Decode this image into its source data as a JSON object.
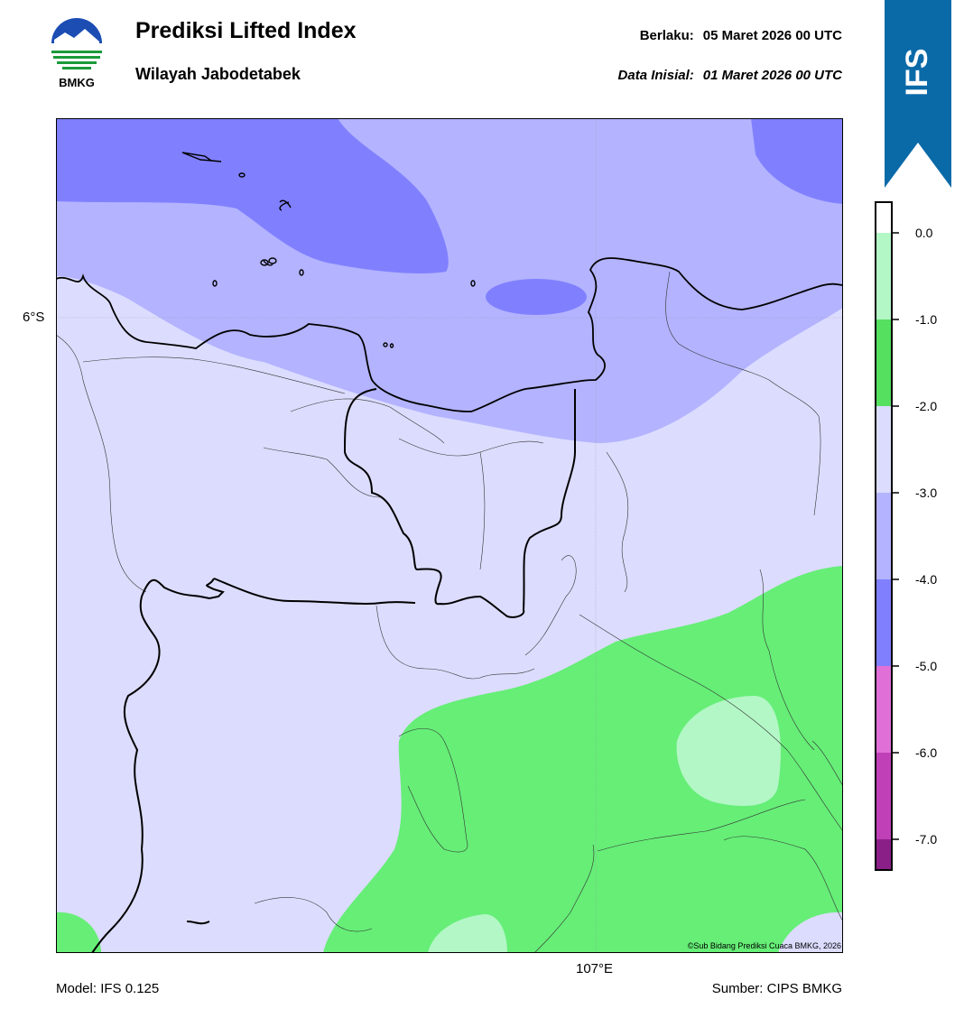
{
  "header": {
    "title": "Prediksi Lifted Index",
    "subtitle": "Wilayah Jabodetabek",
    "valid_label": "Berlaku:",
    "valid_value": "05 Maret 2026 00 UTC",
    "init_label": "Data Inisial:",
    "init_value": "01 Maret 2026 00 UTC"
  },
  "logo": {
    "text": "BMKG",
    "icon": "bmkg-logo"
  },
  "badge": {
    "text": "IFS",
    "color": "#0a6aa8"
  },
  "map": {
    "lat_label": "6°S",
    "lon_label": "107°E",
    "copyright": "©Sub Bidang Prediksi Cuaca BMKG, 2026",
    "colors": {
      "deep_blue": "#8080ff",
      "light_blue": "#b3b3ff",
      "pale": "#dcdcff",
      "green": "#66ee77",
      "pale_green": "#b3f7c6"
    }
  },
  "colorbar": {
    "ticks": [
      "0.0",
      "-1.0",
      "-2.0",
      "-3.0",
      "-4.0",
      "-5.0",
      "-6.0",
      "-7.0"
    ],
    "colors": [
      "#b3f7c6",
      "#55e060",
      "#dcdcff",
      "#b3b3ff",
      "#8080ff",
      "#e070d8",
      "#c040b8",
      "#8a1f88"
    ]
  },
  "footer": {
    "model": "Model: IFS 0.125",
    "source": "Sumber: CIPS BMKG"
  }
}
